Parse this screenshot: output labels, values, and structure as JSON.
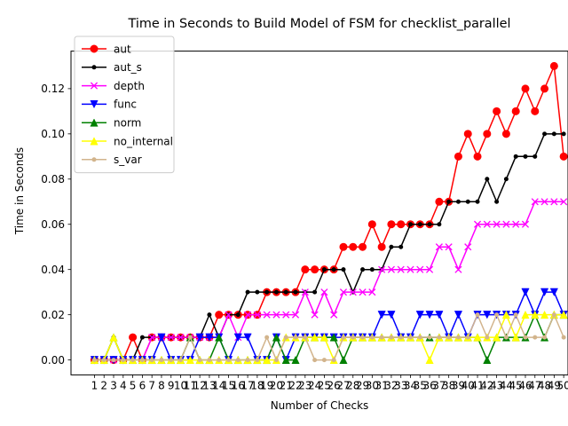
{
  "chart_data": {
    "type": "line",
    "title": "Time in Seconds to Build Model of FSM for checklist_parallel",
    "xlabel": "Number of Checks",
    "ylabel": "Time in Seconds",
    "ylim": [
      -0.0066,
      0.1366
    ],
    "xlim": [
      -1.45,
      50.45
    ],
    "x": [
      1,
      2,
      3,
      4,
      5,
      6,
      7,
      8,
      9,
      10,
      11,
      12,
      13,
      14,
      15,
      16,
      17,
      18,
      19,
      20,
      21,
      22,
      23,
      24,
      25,
      26,
      27,
      28,
      29,
      30,
      31,
      32,
      33,
      34,
      35,
      36,
      37,
      38,
      39,
      40,
      41,
      42,
      43,
      44,
      45,
      46,
      47,
      48,
      49,
      50
    ],
    "x_ticks": [
      "1",
      "2",
      "3",
      "4",
      "5",
      "6",
      "7",
      "8",
      "9",
      "10",
      "11",
      "12",
      "13",
      "14",
      "15",
      "16",
      "17",
      "18",
      "19",
      "20",
      "21",
      "22",
      "23",
      "24",
      "25",
      "26",
      "27",
      "28",
      "29",
      "30",
      "31",
      "32",
      "33",
      "34",
      "35",
      "36",
      "37",
      "38",
      "39",
      "40",
      "41",
      "42",
      "43",
      "44",
      "45",
      "46",
      "47",
      "48",
      "49",
      "50"
    ],
    "y_ticks": [
      0.0,
      0.02,
      0.04,
      0.06,
      0.08,
      0.1,
      0.12
    ],
    "y_tick_labels": [
      "0.00",
      "0.02",
      "0.04",
      "0.06",
      "0.08",
      "0.10",
      "0.12"
    ],
    "grid": false,
    "legend_position": "top-left",
    "series": [
      {
        "name": "aut",
        "color": "#ff0000",
        "marker": "circle",
        "values": [
          0,
          0,
          0,
          0,
          0.01,
          0,
          0.01,
          0.01,
          0.01,
          0.01,
          0.01,
          0.01,
          0.01,
          0.02,
          0.02,
          0.02,
          0.02,
          0.02,
          0.03,
          0.03,
          0.03,
          0.03,
          0.04,
          0.04,
          0.04,
          0.04,
          0.05,
          0.05,
          0.05,
          0.06,
          0.05,
          0.06,
          0.06,
          0.06,
          0.06,
          0.06,
          0.07,
          0.07,
          0.09,
          0.1,
          0.09,
          0.1,
          0.11,
          0.1,
          0.11,
          0.12,
          0.11,
          0.12,
          0.13,
          0.09
        ]
      },
      {
        "name": "aut_s",
        "color": "#000000",
        "marker": "dot",
        "values": [
          0,
          0,
          0.01,
          0,
          0,
          0.01,
          0.01,
          0.01,
          0.01,
          0.01,
          0.01,
          0.01,
          0.02,
          0.01,
          0.02,
          0.02,
          0.03,
          0.03,
          0.03,
          0.03,
          0.03,
          0.03,
          0.03,
          0.03,
          0.04,
          0.04,
          0.04,
          0.03,
          0.04,
          0.04,
          0.04,
          0.05,
          0.05,
          0.06,
          0.06,
          0.06,
          0.06,
          0.07,
          0.07,
          0.07,
          0.07,
          0.08,
          0.07,
          0.08,
          0.09,
          0.09,
          0.09,
          0.1,
          0.1,
          0.1
        ]
      },
      {
        "name": "depth",
        "color": "#ff00ff",
        "marker": "x",
        "values": [
          0,
          0,
          0,
          0,
          0,
          0,
          0.01,
          0.01,
          0.01,
          0.01,
          0.01,
          0.01,
          0.01,
          0.01,
          0.02,
          0.01,
          0.02,
          0.02,
          0.02,
          0.02,
          0.02,
          0.02,
          0.03,
          0.02,
          0.03,
          0.02,
          0.03,
          0.03,
          0.03,
          0.03,
          0.04,
          0.04,
          0.04,
          0.04,
          0.04,
          0.04,
          0.05,
          0.05,
          0.04,
          0.05,
          0.06,
          0.06,
          0.06,
          0.06,
          0.06,
          0.06,
          0.07,
          0.07,
          0.07,
          0.07
        ]
      },
      {
        "name": "func",
        "color": "#0000ff",
        "marker": "triangle-down",
        "values": [
          0,
          0,
          0,
          0,
          0,
          0,
          0,
          0.01,
          0,
          0,
          0,
          0.01,
          0.01,
          0.01,
          0,
          0.01,
          0.01,
          0,
          0,
          0.01,
          0,
          0.01,
          0.01,
          0.01,
          0.01,
          0.01,
          0.01,
          0.01,
          0.01,
          0.01,
          0.02,
          0.02,
          0.01,
          0.01,
          0.02,
          0.02,
          0.02,
          0.01,
          0.02,
          0.01,
          0.02,
          0.02,
          0.02,
          0.02,
          0.02,
          0.03,
          0.02,
          0.03,
          0.03,
          0.02
        ]
      },
      {
        "name": "norm",
        "color": "#008000",
        "marker": "triangle-up",
        "values": [
          0,
          0,
          0.01,
          0,
          0,
          0,
          0,
          0,
          0,
          0,
          0.01,
          0,
          0,
          0.01,
          0,
          0,
          0,
          0,
          0,
          0.01,
          0,
          0,
          0.01,
          0.01,
          0.01,
          0.01,
          0,
          0.01,
          0.01,
          0.01,
          0.01,
          0.01,
          0.01,
          0.01,
          0.01,
          0.01,
          0.01,
          0.01,
          0.01,
          0.01,
          0.01,
          0,
          0.01,
          0.01,
          0.01,
          0.01,
          0.02,
          0.01,
          0.02,
          0.02
        ]
      },
      {
        "name": "no_internal",
        "color": "#ffff00",
        "marker": "triangle-up",
        "values": [
          0,
          0,
          0.01,
          0,
          0,
          0,
          0,
          0,
          0,
          0,
          0,
          0,
          0,
          0,
          0,
          0,
          0,
          0,
          0,
          0,
          0.01,
          0.01,
          0.01,
          0.01,
          0.01,
          0,
          0.01,
          0.01,
          0.01,
          0.01,
          0.01,
          0.01,
          0.01,
          0.01,
          0.01,
          0,
          0.01,
          0.01,
          0.01,
          0.01,
          0.01,
          0.01,
          0.01,
          0.02,
          0.01,
          0.02,
          0.02,
          0.02,
          0.02,
          0.02
        ]
      },
      {
        "name": "s_var",
        "color": "#d2b48c",
        "marker": "dot",
        "values": [
          0,
          0,
          0,
          0,
          0,
          0,
          0,
          0,
          0,
          0,
          0.01,
          0,
          0,
          0,
          0,
          0,
          0,
          0,
          0.01,
          0,
          0.01,
          0.01,
          0.01,
          0,
          0,
          0,
          0.01,
          0.01,
          0.01,
          0.01,
          0.01,
          0.01,
          0.01,
          0.01,
          0.01,
          0.01,
          0.01,
          0.01,
          0.01,
          0.01,
          0.02,
          0.01,
          0.02,
          0.01,
          0.02,
          0.01,
          0.01,
          0.01,
          0.02,
          0.01
        ]
      }
    ]
  }
}
